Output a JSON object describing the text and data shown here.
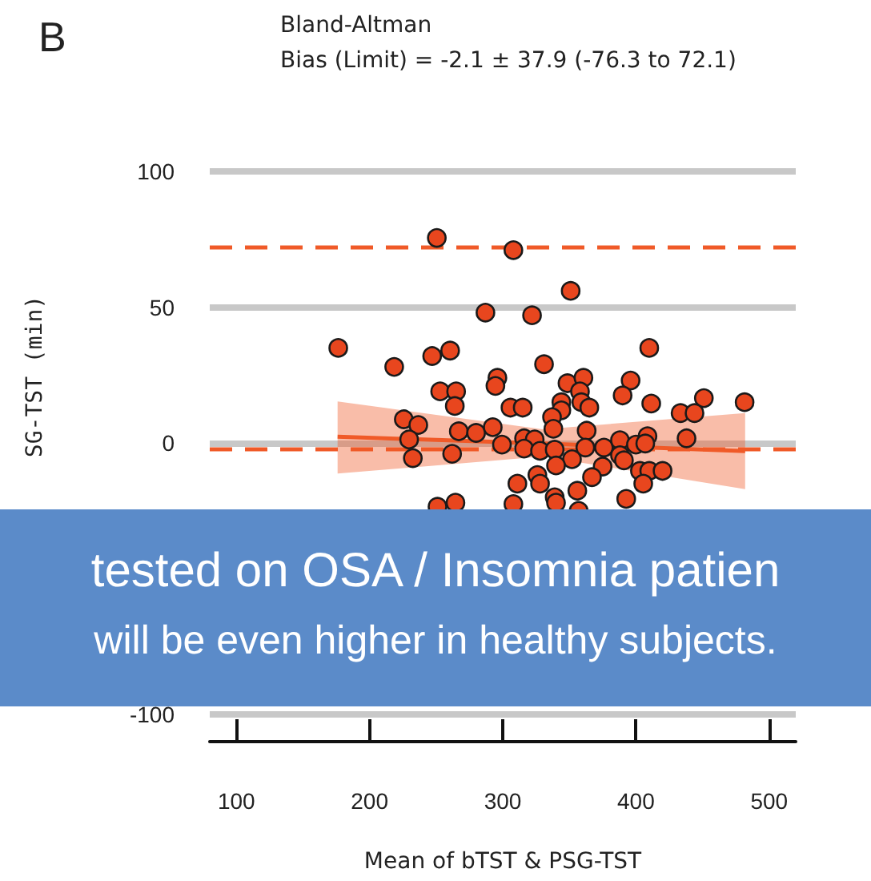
{
  "chart_data": {
    "type": "scatter",
    "title": "Bland-Altman",
    "subtitle": "Bias (Limit) = -2.1 ± 37.9 (-76.3 to 72.1)",
    "xlabel": "Mean of bTST & PSG-TST",
    "ylabel": "SG-TST (min)",
    "annotations": [
      "B",
      "tested on OSA / Insomnia patien",
      "will be even higher in healthy subjects."
    ],
    "xlim": [
      80,
      520
    ],
    "xticks": [
      100,
      200,
      300,
      400,
      500
    ],
    "ylim": [
      -110,
      100
    ],
    "yticks": [
      -100,
      0,
      50,
      100
    ],
    "grid": "y",
    "marker": "circle",
    "ref_lines": [
      {
        "axis": "y",
        "value": 72.1,
        "label": null,
        "color": "#f05a28",
        "line_style": "dashed"
      },
      {
        "axis": "y",
        "value": -2.1,
        "label": null,
        "color": "#f05a28",
        "line_style": "dashed"
      }
    ],
    "series": [
      {
        "color": "#e8461e",
        "x": [
          250.5,
          308,
          351,
          287,
          322,
          176.5,
          410,
          218.5,
          247,
          260.5,
          331,
          296,
          294.5,
          253,
          265,
          264,
          348.6,
          360.6,
          358,
          359,
          365,
          344,
          344,
          337,
          305.8,
          315,
          396,
          390,
          411.5,
          451,
          481.6,
          433.5,
          444,
          225.7,
          236.6,
          229.7,
          267,
          280,
          292.5,
          299.4,
          316,
          324,
          338,
          316,
          328,
          339,
          363,
          362,
          376,
          388,
          400,
          408.7,
          407,
          438,
          388,
          391,
          232.5,
          262,
          352,
          340,
          375,
          367,
          326,
          328,
          311,
          356,
          403,
          410,
          420,
          405.5,
          392.7,
          339,
          340,
          308,
          264.5,
          251,
          357
        ],
        "values": [
          75.5,
          71,
          56,
          48,
          47,
          35,
          35,
          28,
          32,
          34,
          29,
          24,
          21,
          19,
          19,
          13.6,
          22,
          24,
          19,
          15,
          13,
          15,
          12,
          9.5,
          13,
          13,
          23,
          17.5,
          14.5,
          16.5,
          15,
          11,
          11,
          8.7,
          6.6,
          1.3,
          4.3,
          3.7,
          5.8,
          -0.6,
          1.7,
          1.3,
          5.2,
          -2.1,
          -2.9,
          -2.5,
          4.5,
          -1.7,
          -1.7,
          1,
          -0.6,
          2.5,
          -0.2,
          1.7,
          -4.5,
          -6.4,
          -5.6,
          -4,
          -6,
          -8.3,
          -8.7,
          -12.6,
          -11.8,
          -15,
          -15,
          -17.6,
          -10.3,
          -10.3,
          -10.3,
          -15,
          -20.6,
          -20,
          -22,
          -22.5,
          -22,
          -23.5,
          -25
        ]
      },
      {
        "type": "line",
        "marker": "none",
        "color": "#f05a28",
        "x": [
          176,
          330,
          482
        ],
        "values": [
          2.3,
          -0.2,
          -3
        ],
        "lower": [
          -11.3,
          -5,
          -17
        ],
        "upper": [
          15.3,
          5,
          11
        ]
      }
    ]
  }
}
